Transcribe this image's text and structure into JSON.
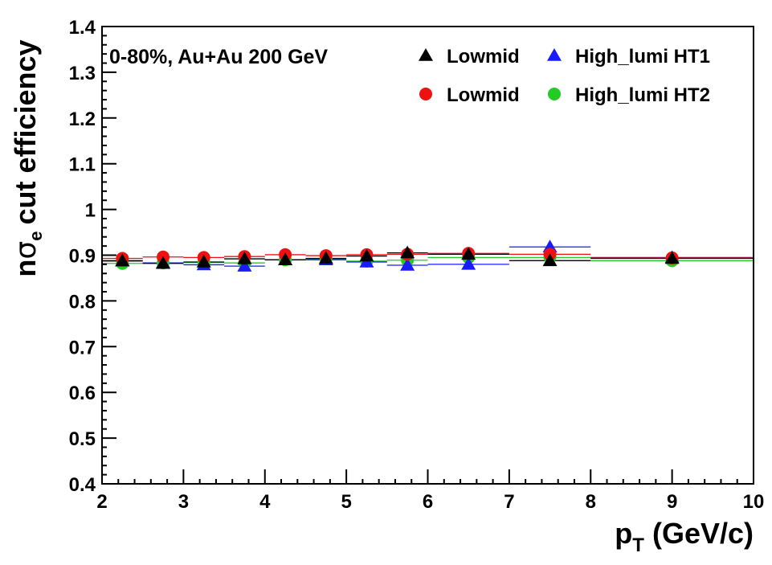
{
  "chart_data": {
    "type": "scatter",
    "annotation": "0-80%, Au+Au 200 GeV",
    "xlabel": "p",
    "xlabel_sub": "T",
    "xlabel_unit": "(GeV/c)",
    "ylabel_pre": "n",
    "ylabel_sym": "σ",
    "ylabel_sub": "e",
    "ylabel_post": "cut efficiency",
    "xlim": [
      2,
      10
    ],
    "ylim": [
      0.4,
      1.4
    ],
    "xticks": [
      "2",
      "3",
      "4",
      "5",
      "6",
      "7",
      "8",
      "9",
      "10"
    ],
    "yticks": [
      "0.4",
      "0.5",
      "0.6",
      "0.7",
      "0.8",
      "0.9",
      "1",
      "1.1",
      "1.2",
      "1.3",
      "1.4"
    ],
    "grid": false,
    "legend_position": "top-right",
    "bins": [
      [
        2.0,
        2.5
      ],
      [
        2.5,
        3.0
      ],
      [
        3.0,
        3.5
      ],
      [
        3.5,
        4.0
      ],
      [
        4.0,
        4.5
      ],
      [
        4.5,
        5.0
      ],
      [
        5.0,
        5.5
      ],
      [
        5.5,
        6.0
      ],
      [
        6.0,
        7.0
      ],
      [
        7.0,
        8.0
      ],
      [
        8.0,
        10.0
      ]
    ],
    "x": [
      2.25,
      2.75,
      3.25,
      3.75,
      4.25,
      4.75,
      5.25,
      5.75,
      6.5,
      7.5,
      9.0
    ],
    "series": [
      {
        "name": "Lowmid",
        "marker": "triangle",
        "color": "#000000",
        "values": [
          0.888,
          0.882,
          0.885,
          0.892,
          0.89,
          0.893,
          0.898,
          0.905,
          0.902,
          0.888,
          0.893
        ]
      },
      {
        "name": "Lowmid",
        "marker": "circle",
        "color": "#ee1111",
        "values": [
          0.893,
          0.896,
          0.895,
          0.897,
          0.901,
          0.899,
          0.901,
          0.902,
          0.904,
          0.902,
          0.894
        ]
      },
      {
        "name": "High_lumi HT1",
        "marker": "triangle",
        "color": "#1a1aff",
        "values": [
          0.887,
          0.883,
          0.879,
          0.876,
          0.89,
          0.89,
          0.885,
          0.878,
          0.88,
          0.918,
          0.895
        ]
      },
      {
        "name": "High_lumi HT2",
        "marker": "circle",
        "color": "#22cc22",
        "values": [
          0.882,
          0.883,
          0.884,
          0.883,
          0.89,
          0.892,
          0.887,
          0.889,
          0.895,
          0.895,
          0.888
        ]
      }
    ],
    "legend": [
      {
        "series": 0,
        "label": "Lowmid"
      },
      {
        "series": 2,
        "label": "High_lumi HT1"
      },
      {
        "series": 1,
        "label": "Lowmid"
      },
      {
        "series": 3,
        "label": "High_lumi HT2"
      }
    ]
  }
}
